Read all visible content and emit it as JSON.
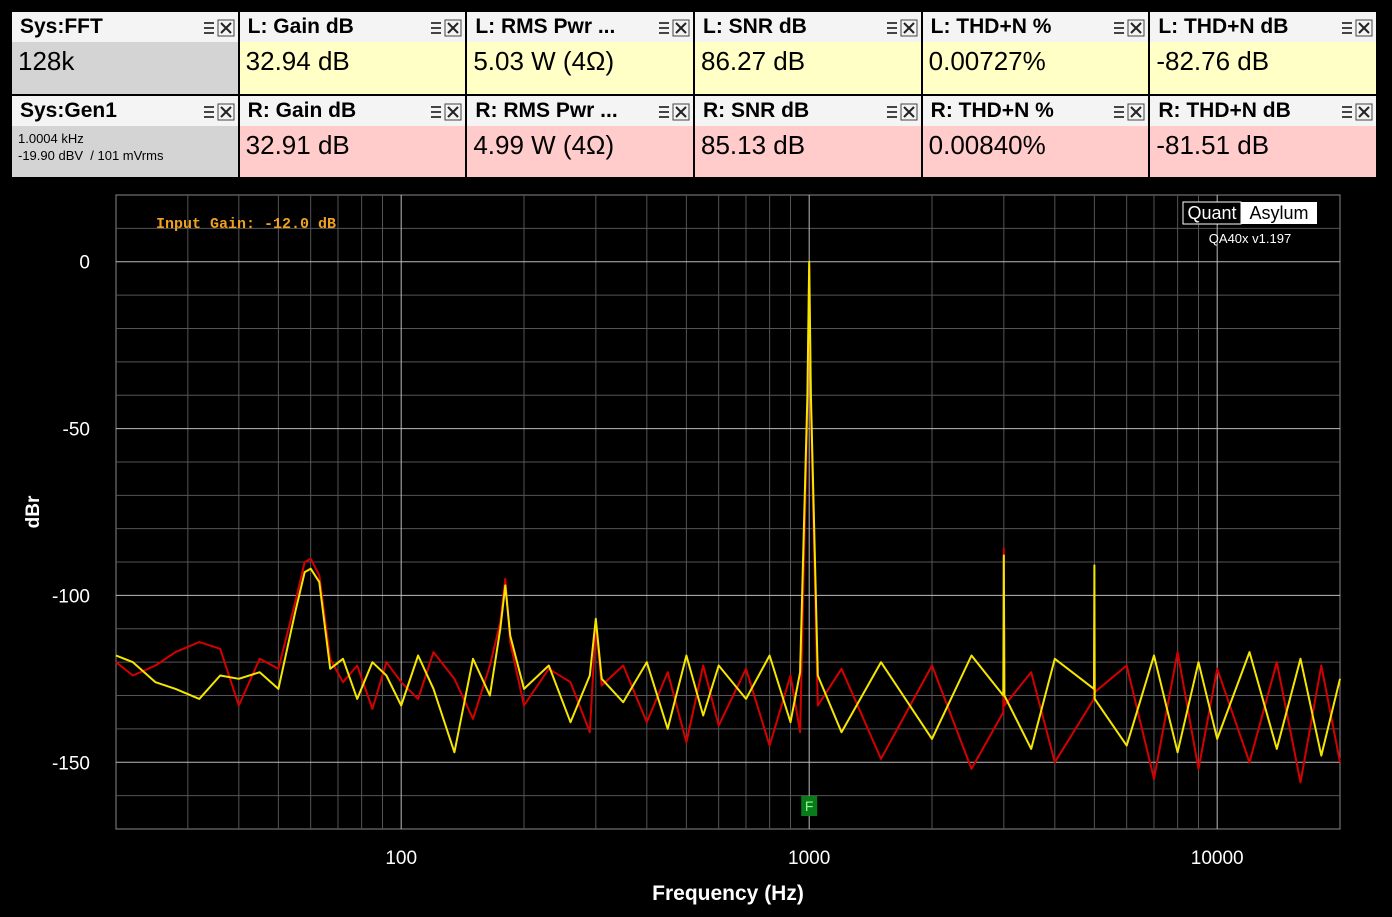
{
  "panels": [
    [
      {
        "header": "Sys:FFT",
        "lines": [
          "128k"
        ],
        "style": "sys"
      },
      {
        "header": "L: Gain dB",
        "lines": [
          "32.94 dB"
        ],
        "style": "left"
      },
      {
        "header": "L: RMS Pwr ...",
        "lines": [
          "5.03 W (4Ω)"
        ],
        "style": "left"
      },
      {
        "header": "L: SNR dB",
        "lines": [
          "86.27 dB"
        ],
        "style": "left"
      },
      {
        "header": "L: THD+N %",
        "lines": [
          "0.00727%"
        ],
        "style": "left"
      },
      {
        "header": "L: THD+N dB",
        "lines": [
          "-82.76 dB"
        ],
        "style": "left"
      }
    ],
    [
      {
        "header": "Sys:Gen1",
        "lines": [
          "1.0004 kHz",
          "-19.90 dBV  / 101 mVrms"
        ],
        "style": "sys"
      },
      {
        "header": "R: Gain dB",
        "lines": [
          "32.91 dB"
        ],
        "style": "right"
      },
      {
        "header": "R: RMS Pwr ...",
        "lines": [
          "4.99 W (4Ω)"
        ],
        "style": "right"
      },
      {
        "header": "R: SNR dB",
        "lines": [
          "85.13 dB"
        ],
        "style": "right"
      },
      {
        "header": "R: THD+N %",
        "lines": [
          "0.00840%"
        ],
        "style": "right"
      },
      {
        "header": "R: THD+N dB",
        "lines": [
          "-81.51 dB"
        ],
        "style": "right"
      }
    ]
  ],
  "logo": {
    "left": "Quant",
    "right": "Asylum",
    "version": "QA40x v1.197"
  },
  "chart_data": {
    "type": "line",
    "annotation": "Input Gain: -12.0 dB",
    "xlabel": "Frequency (Hz)",
    "ylabel": "dBr",
    "xscale": "log",
    "grid": true,
    "marker": {
      "label": "F",
      "x": 1000
    },
    "xlim": [
      20,
      20000
    ],
    "ylim": [
      -170,
      20
    ],
    "xticks": [
      100,
      1000,
      10000
    ],
    "yticks": [
      -150,
      -100,
      -50,
      0
    ],
    "minor_xticks": [
      30,
      40,
      50,
      60,
      70,
      80,
      90,
      200,
      300,
      400,
      500,
      600,
      700,
      800,
      900,
      2000,
      3000,
      4000,
      5000,
      6000,
      7000,
      8000,
      9000
    ],
    "minor_yticks": [
      -160,
      -140,
      -130,
      -120,
      -110,
      -90,
      -80,
      -70,
      -60,
      -40,
      -30,
      -20,
      -10,
      10
    ],
    "x": [
      20,
      22,
      25,
      28,
      32,
      36,
      40,
      45,
      50,
      55,
      58,
      60,
      63,
      67,
      72,
      78,
      85,
      92,
      100,
      110,
      120,
      135,
      150,
      165,
      175,
      180,
      185,
      200,
      230,
      260,
      290,
      300,
      310,
      350,
      400,
      450,
      500,
      550,
      600,
      700,
      800,
      900,
      950,
      990,
      1000,
      1010,
      1050,
      1200,
      1500,
      2000,
      2500,
      2990,
      3000,
      3010,
      3500,
      4000,
      4990,
      5000,
      5010,
      6000,
      7000,
      8000,
      9000,
      10000,
      12000,
      14000,
      16000,
      18000,
      20000
    ],
    "series": [
      {
        "name": "R",
        "color": "#d40000",
        "values": [
          -120,
          -124,
          -121,
          -117,
          -114,
          -116,
          -133,
          -119,
          -122,
          -102,
          -90,
          -89,
          -94,
          -119,
          -126,
          -121,
          -134,
          -120,
          -126,
          -131,
          -117,
          -125,
          -137,
          -121,
          -108,
          -95,
          -114,
          -133,
          -122,
          -126,
          -141,
          -109,
          -127,
          -121,
          -138,
          -123,
          -144,
          -121,
          -139,
          -122,
          -145,
          -124,
          -141,
          -45,
          -1,
          -45,
          -133,
          -122,
          -149,
          -121,
          -152,
          -135,
          -86,
          -133,
          -123,
          -150,
          -131,
          -108,
          -129,
          -121,
          -155,
          -117,
          -152,
          -122,
          -150,
          -120,
          -156,
          -121,
          -150
        ]
      },
      {
        "name": "L",
        "color": "#f5e600",
        "values": [
          -118,
          -120,
          -126,
          -128,
          -131,
          -124,
          -125,
          -123,
          -128,
          -105,
          -93,
          -92,
          -96,
          -122,
          -119,
          -131,
          -120,
          -124,
          -133,
          -118,
          -128,
          -147,
          -119,
          -130,
          -110,
          -97,
          -112,
          -128,
          -121,
          -138,
          -124,
          -107,
          -125,
          -132,
          -120,
          -140,
          -118,
          -136,
          -121,
          -131,
          -118,
          -138,
          -123,
          -40,
          0,
          -40,
          -124,
          -141,
          -120,
          -143,
          -118,
          -130,
          -88,
          -130,
          -146,
          -119,
          -128,
          -91,
          -131,
          -145,
          -118,
          -147,
          -120,
          -143,
          -117,
          -146,
          -119,
          -148,
          -125
        ]
      }
    ]
  }
}
